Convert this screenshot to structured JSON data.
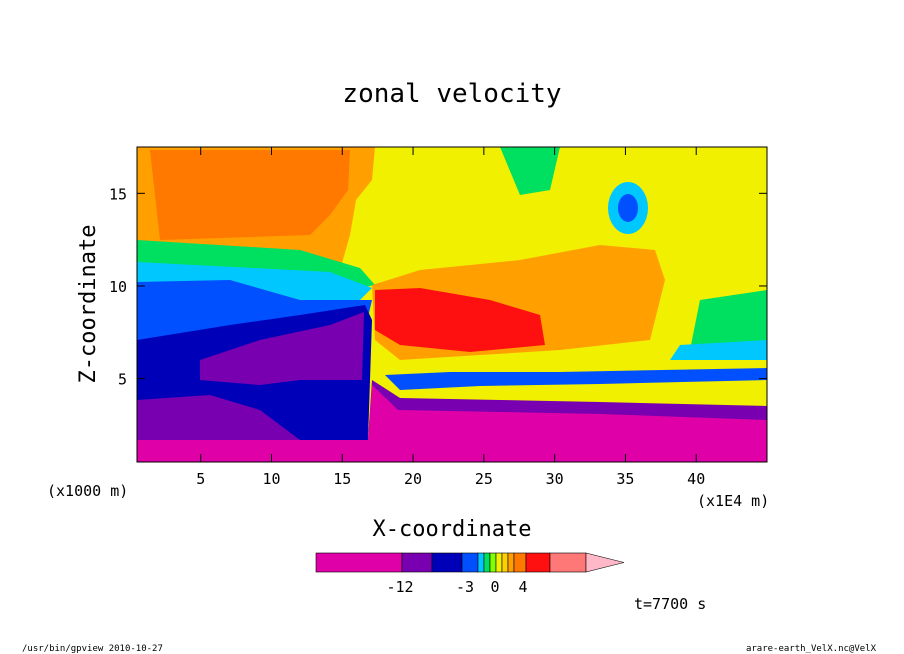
{
  "chart_data": {
    "type": "heatmap",
    "title": "zonal velocity",
    "xlabel": "X-coordinate",
    "ylabel": "Z-coordinate",
    "x_unit_left": "(x1000 m)",
    "x_unit_right": "(x1E4 m)",
    "xlim": [
      0.5,
      45
    ],
    "ylim": [
      0.5,
      17.5
    ],
    "x_ticks": [
      5,
      10,
      15,
      20,
      25,
      30,
      35,
      40
    ],
    "y_ticks": [
      5,
      10,
      15
    ],
    "colorbar": {
      "colors": [
        "#e000a8",
        "#7800b0",
        "#0000b8",
        "#0050ff",
        "#00c8ff",
        "#00e060",
        "#80ff00",
        "#f0f000",
        "#ffd000",
        "#ffa000",
        "#ff7800",
        "#ff1010",
        "#ff7878",
        "#ffb8c8"
      ],
      "tick_labels": [
        "-12",
        "-3",
        "0",
        "4"
      ],
      "tick_levels": [
        -12,
        -3,
        0,
        4
      ]
    },
    "time_label": "t=7700 s",
    "grid": false
  },
  "footer": {
    "left": "/usr/bin/gpview   2010-10-27",
    "right": "arare-earth_VelX.nc@VelX"
  }
}
